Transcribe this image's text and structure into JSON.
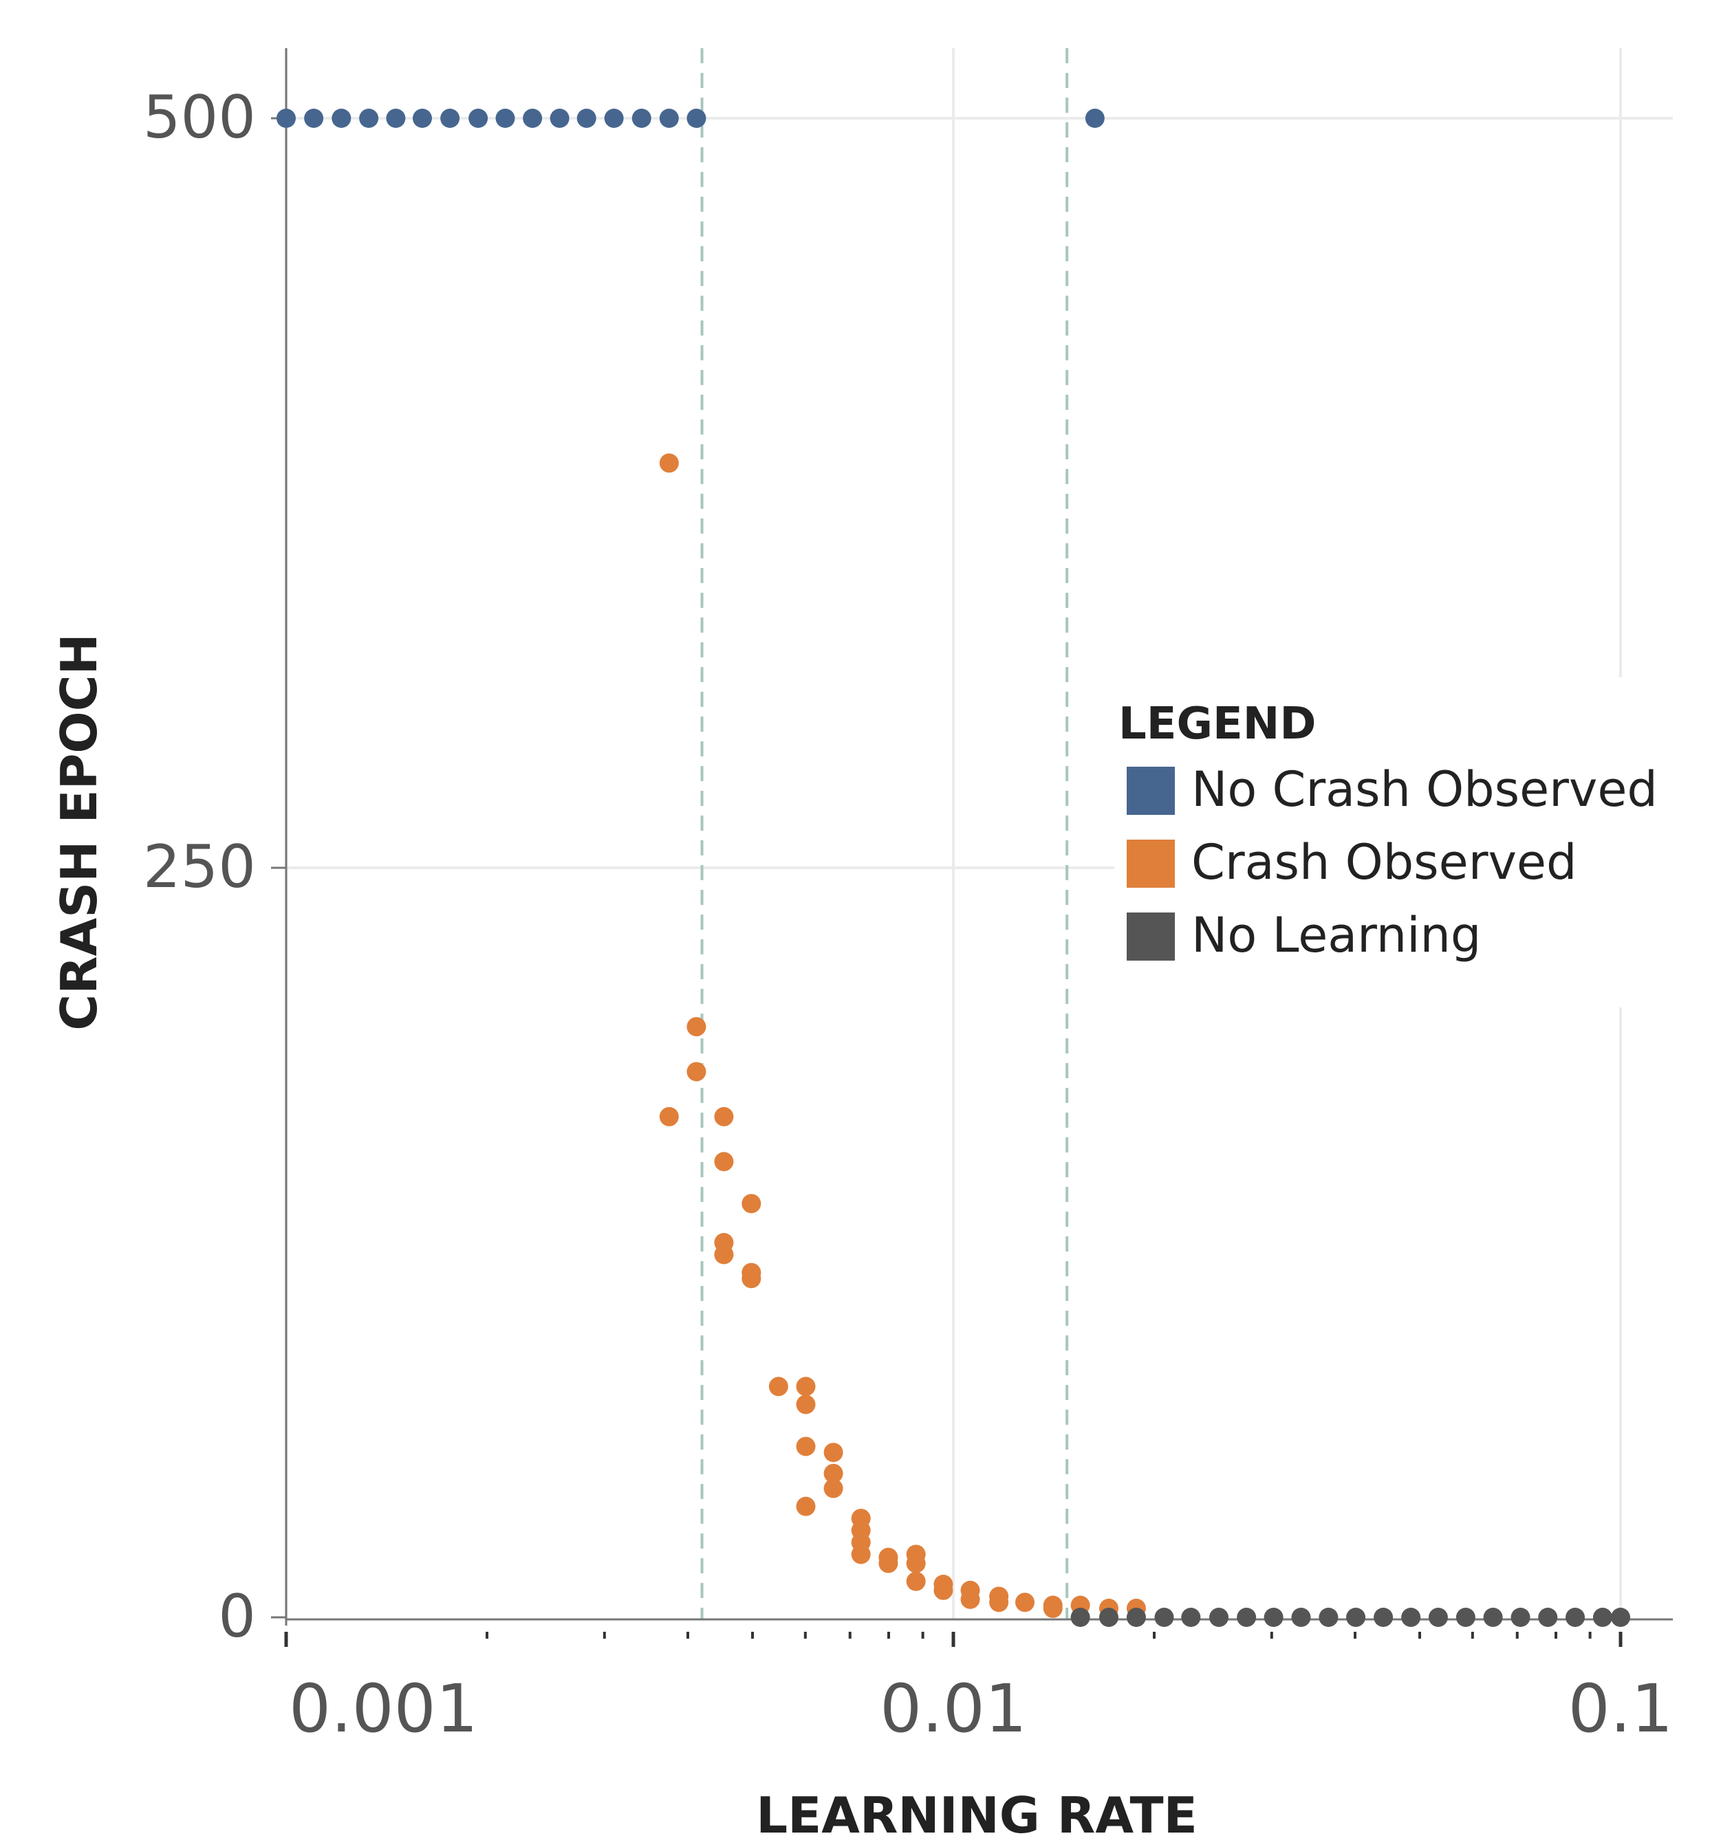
{
  "chart_data": {
    "type": "scatter",
    "title": "",
    "xlabel": "LEARNING RATE",
    "ylabel": "CRASH EPOCH",
    "x_scale": "log",
    "xlim": [
      0.001,
      0.12
    ],
    "ylim": [
      -5,
      525
    ],
    "x_ticks": [
      0.001,
      0.01,
      0.1
    ],
    "x_tick_labels": [
      "0.001",
      "0.01",
      "0.1"
    ],
    "y_ticks": [
      0,
      250,
      500
    ],
    "y_tick_labels": [
      "0",
      "250",
      "500"
    ],
    "grid": true,
    "vlines": [
      0.0042,
      0.0148
    ],
    "legend": {
      "title": "LEGEND",
      "position": "right",
      "entries": [
        {
          "label": "No Crash Observed",
          "color": "#46668f"
        },
        {
          "label": "Crash Observed",
          "color": "#e07f3a"
        },
        {
          "label": "No Learning",
          "color": "#555555"
        }
      ]
    },
    "series": [
      {
        "name": "No Crash Observed",
        "color": "#46668f",
        "points": [
          [
            0.001,
            500
          ],
          [
            0.0011,
            500
          ],
          [
            0.00121,
            500
          ],
          [
            0.00133,
            500
          ],
          [
            0.00146,
            500
          ],
          [
            0.0016,
            500
          ],
          [
            0.00176,
            500
          ],
          [
            0.00194,
            500
          ],
          [
            0.00213,
            500
          ],
          [
            0.00234,
            500
          ],
          [
            0.00257,
            500
          ],
          [
            0.00282,
            500
          ],
          [
            0.0031,
            500
          ],
          [
            0.00341,
            500
          ],
          [
            0.00375,
            500
          ],
          [
            0.00412,
            500
          ],
          [
            0.0163,
            500
          ]
        ]
      },
      {
        "name": "Crash Observed",
        "color": "#e07f3a",
        "points": [
          [
            0.00375,
            385
          ],
          [
            0.00375,
            167
          ],
          [
            0.00412,
            197
          ],
          [
            0.00412,
            182
          ],
          [
            0.00453,
            167
          ],
          [
            0.00453,
            152
          ],
          [
            0.00453,
            125
          ],
          [
            0.00453,
            121
          ],
          [
            0.00498,
            138
          ],
          [
            0.00498,
            115
          ],
          [
            0.00498,
            113
          ],
          [
            0.00547,
            77
          ],
          [
            0.00601,
            77
          ],
          [
            0.00601,
            71
          ],
          [
            0.00601,
            57
          ],
          [
            0.00601,
            37
          ],
          [
            0.00661,
            55
          ],
          [
            0.00661,
            48
          ],
          [
            0.00661,
            43
          ],
          [
            0.00727,
            33
          ],
          [
            0.00727,
            29
          ],
          [
            0.00727,
            25
          ],
          [
            0.00727,
            21
          ],
          [
            0.00799,
            20
          ],
          [
            0.00799,
            18
          ],
          [
            0.00879,
            21
          ],
          [
            0.00879,
            18
          ],
          [
            0.00879,
            12
          ],
          [
            0.00966,
            11
          ],
          [
            0.00966,
            9
          ],
          [
            0.0106,
            9
          ],
          [
            0.0106,
            6
          ],
          [
            0.0117,
            7
          ],
          [
            0.0117,
            5
          ],
          [
            0.0128,
            5
          ],
          [
            0.0141,
            4
          ],
          [
            0.0141,
            3
          ],
          [
            0.0155,
            4
          ],
          [
            0.0171,
            3
          ],
          [
            0.0188,
            3
          ]
        ]
      },
      {
        "name": "No Learning",
        "color": "#555555",
        "points": [
          [
            0.0155,
            0
          ],
          [
            0.0171,
            0
          ],
          [
            0.0188,
            0
          ],
          [
            0.0207,
            0
          ],
          [
            0.0227,
            0
          ],
          [
            0.025,
            0
          ],
          [
            0.0275,
            0
          ],
          [
            0.0302,
            0
          ],
          [
            0.0332,
            0
          ],
          [
            0.0365,
            0
          ],
          [
            0.0401,
            0
          ],
          [
            0.0441,
            0
          ],
          [
            0.0485,
            0
          ],
          [
            0.0533,
            0
          ],
          [
            0.0586,
            0
          ],
          [
            0.0644,
            0
          ],
          [
            0.0708,
            0
          ],
          [
            0.0778,
            0
          ],
          [
            0.0855,
            0
          ],
          [
            0.094,
            0
          ],
          [
            0.1,
            0
          ]
        ]
      }
    ]
  }
}
